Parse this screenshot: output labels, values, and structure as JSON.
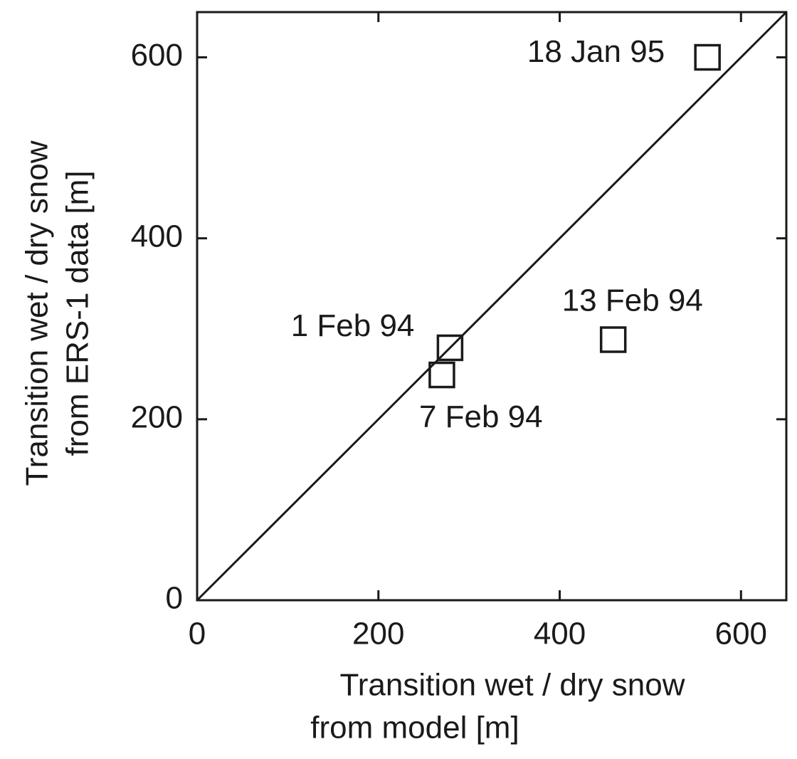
{
  "chart_data": {
    "type": "scatter",
    "xlabel": [
      "Transition wet / dry snow",
      "from model [m]"
    ],
    "ylabel": [
      "Transition wet / dry snow",
      "from ERS-1 data [m]"
    ],
    "x": [
      563,
      279,
      270,
      459
    ],
    "values": [
      600,
      279,
      249,
      288
    ],
    "point_labels": [
      "18 Jan 95",
      "1 Feb 94",
      "7 Feb 94",
      "13 Feb 94"
    ],
    "marker": "square",
    "color": "#1a1a1a",
    "identity_line": true,
    "xlim": [
      0,
      650
    ],
    "ylim": [
      0,
      650
    ],
    "xticks": [
      0,
      200,
      400,
      600
    ],
    "yticks": [
      0,
      200,
      400,
      600
    ]
  }
}
